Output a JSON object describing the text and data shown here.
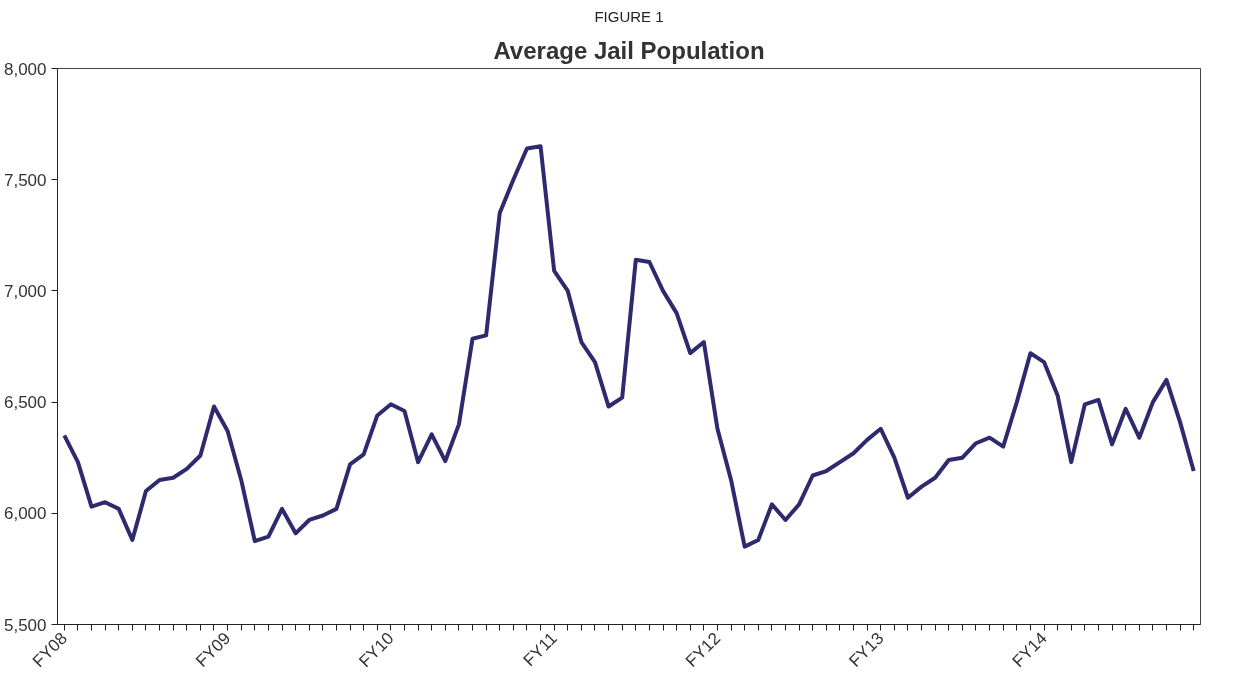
{
  "chart_data": {
    "type": "line",
    "title": "Average Jail Population",
    "annotations": [
      "FIGURE 1"
    ],
    "categories": [
      "FY08",
      null,
      null,
      null,
      null,
      null,
      null,
      null,
      null,
      null,
      null,
      null,
      "FY09",
      null,
      null,
      null,
      null,
      null,
      null,
      null,
      null,
      null,
      null,
      null,
      "FY10",
      null,
      null,
      null,
      null,
      null,
      null,
      null,
      null,
      null,
      null,
      null,
      "FY11",
      null,
      null,
      null,
      null,
      null,
      null,
      null,
      null,
      null,
      null,
      null,
      "FY12",
      null,
      null,
      null,
      null,
      null,
      null,
      null,
      null,
      null,
      null,
      null,
      "FY13",
      null,
      null,
      null,
      null,
      null,
      null,
      null,
      null,
      null,
      null,
      null,
      "FY14",
      null,
      null,
      null,
      null,
      null,
      null,
      null,
      null,
      null,
      null,
      null
    ],
    "series": [
      {
        "color": "#2e2a6e",
        "values": [
          6350,
          6230,
          6030,
          6050,
          6020,
          5880,
          6100,
          6150,
          6160,
          6200,
          6260,
          6480,
          6370,
          6150,
          5875,
          5895,
          6020,
          5910,
          5970,
          5990,
          6020,
          6220,
          6265,
          6440,
          6490,
          6460,
          6230,
          6355,
          6235,
          6400,
          6785,
          6800,
          7350,
          7500,
          7640,
          7650,
          7090,
          7000,
          6770,
          6680,
          6480,
          6520,
          7140,
          7130,
          7000,
          6900,
          6720,
          6770,
          6380,
          6150,
          5850,
          5880,
          6040,
          5970,
          6040,
          6170,
          6190,
          6230,
          6270,
          6330,
          6380,
          6250,
          6070,
          6120,
          6160,
          6240,
          6250,
          6315,
          6340,
          6300,
          6500,
          6720,
          6680,
          6530,
          6230,
          6490,
          6510,
          6310,
          6470,
          6340,
          6500,
          6600,
          6410,
          6190
        ]
      }
    ],
    "ylim": [
      5500,
      8000
    ],
    "yticks": [
      {
        "value": 5500,
        "label": "5,500"
      },
      {
        "value": 6000,
        "label": "6,000"
      },
      {
        "value": 6500,
        "label": "6,500"
      },
      {
        "value": 7000,
        "label": "7,000"
      },
      {
        "value": 7500,
        "label": "7,500"
      },
      {
        "value": 8000,
        "label": "8,000"
      }
    ],
    "grid": false,
    "marker": "none",
    "line_style": "solid"
  }
}
